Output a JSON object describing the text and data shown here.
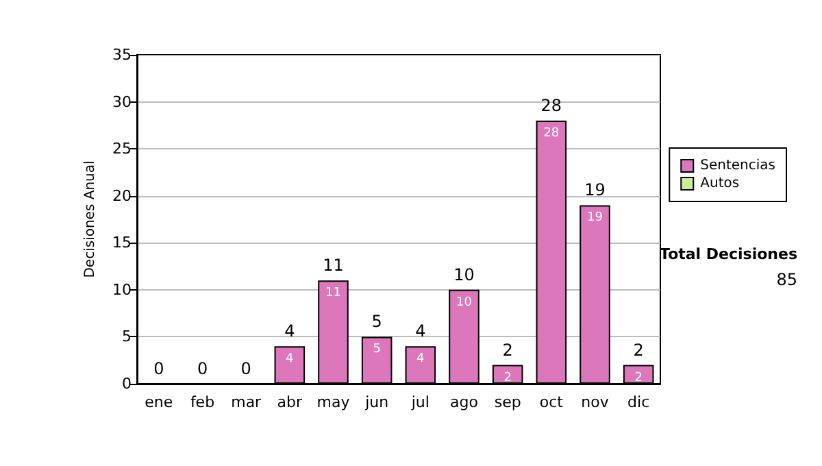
{
  "chart_data": {
    "type": "bar",
    "ylabel": "Decisiones Anual",
    "categories": [
      "ene",
      "feb",
      "mar",
      "abr",
      "may",
      "jun",
      "jul",
      "ago",
      "sep",
      "oct",
      "nov",
      "dic"
    ],
    "series": [
      {
        "name": "Sentencias",
        "color": "#dd77bb",
        "values": [
          0,
          0,
          0,
          4,
          11,
          5,
          4,
          10,
          2,
          28,
          19,
          2
        ],
        "value_labels": [
          null,
          null,
          null,
          "4",
          "11",
          "5",
          "4",
          "10",
          "2",
          "28",
          "19",
          "2"
        ]
      },
      {
        "name": "Autos",
        "color": "#ccee99",
        "values": [
          0,
          0,
          0,
          0,
          0,
          0,
          0,
          0,
          0,
          0,
          0,
          0
        ]
      }
    ],
    "stacked": true,
    "totals": [
      "0",
      "0",
      "0",
      "4",
      "11",
      "5",
      "4",
      "10",
      "2",
      "28",
      "19",
      "2"
    ],
    "ylim": [
      0,
      35
    ],
    "yticks": [
      0,
      5,
      10,
      15,
      20,
      25,
      30,
      35
    ],
    "grid": "y",
    "legend": "right",
    "annotations": [
      "Total Decisiones",
      "85"
    ]
  }
}
